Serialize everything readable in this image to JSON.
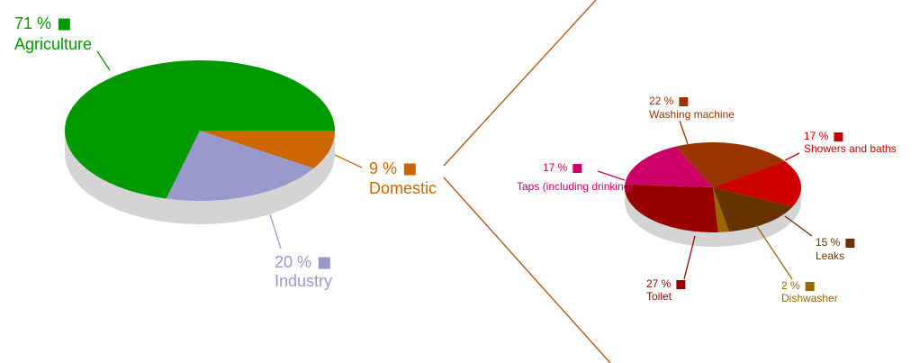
{
  "chart_data": [
    {
      "type": "pie",
      "categories": [
        "Agriculture",
        "Industry",
        "Domestic"
      ],
      "values": [
        71,
        20,
        9
      ],
      "value_labels": [
        "71 %",
        "20 %",
        "9 %"
      ],
      "colors": [
        "#009900",
        "#9999cc",
        "#cc6600"
      ]
    },
    {
      "type": "pie",
      "categories": [
        "Washing machine",
        "Showers and baths",
        "Leaks",
        "Dishwasher",
        "Toilet",
        "Taps (including drinking)"
      ],
      "values": [
        22,
        17,
        15,
        2,
        27,
        17
      ],
      "value_labels": [
        "22 %",
        "17 %",
        "15 %",
        "2 %",
        "27 %",
        "17 %"
      ],
      "colors": [
        "#993300",
        "#cc0000",
        "#663300",
        "#996600",
        "#990000",
        "#cc0066"
      ]
    }
  ]
}
